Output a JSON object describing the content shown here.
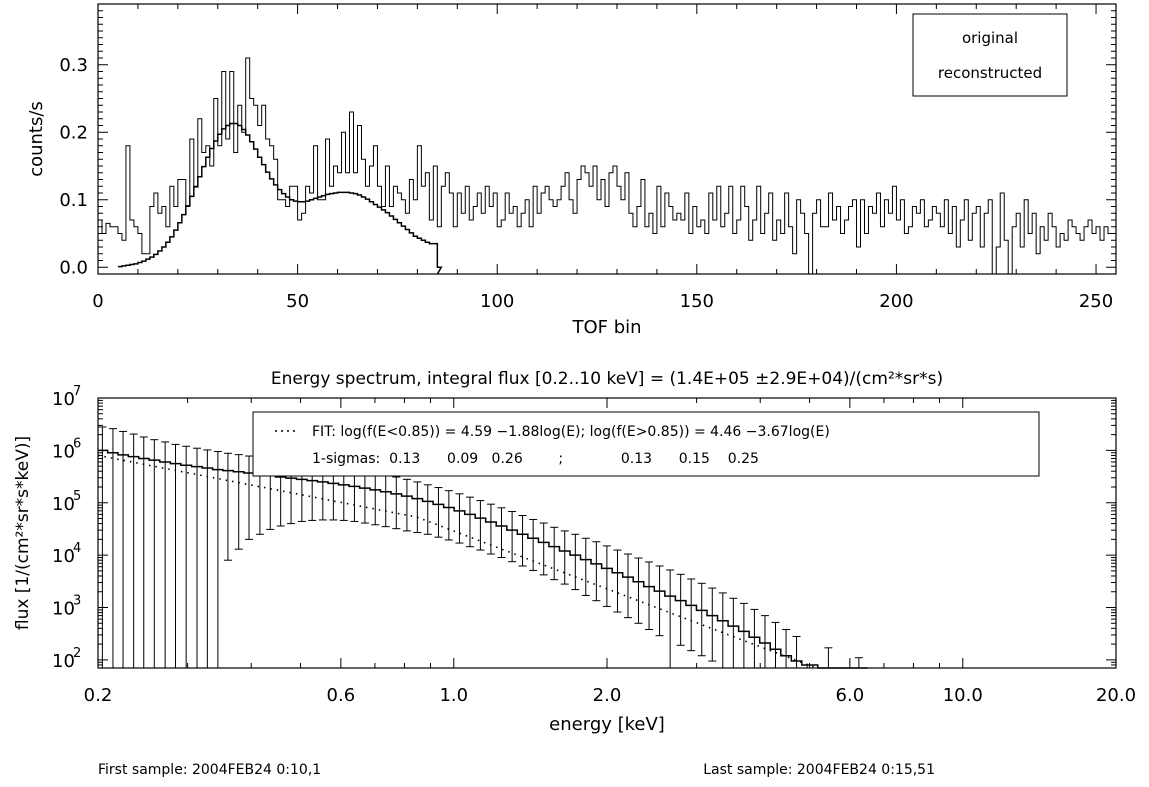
{
  "top_chart": {
    "ylabel": "counts/s",
    "xlabel": "TOF bin",
    "x_ticks": [
      0,
      50,
      100,
      150,
      200,
      250
    ],
    "y_ticks": [
      "0.0",
      "0.1",
      "0.2",
      "0.3"
    ],
    "legend": [
      "original",
      "reconstructed"
    ]
  },
  "bottom_chart": {
    "title": "Energy spectrum,   integral flux [0.2..10 keV] = (1.4E+05 ±2.9E+04)/(cm²*sr*s)",
    "ylabel": "flux [1/(cm²*sr*s*keV)]",
    "xlabel": "energy [keV]",
    "x_ticks": [
      "0.2",
      "0.6",
      "1.0",
      "2.0",
      "6.0",
      "10.0",
      "20.0"
    ],
    "y_ticks": [
      "2",
      "3",
      "4",
      "5",
      "6",
      "7"
    ],
    "legend_fit": "FIT: log(f(E<0.85)) = 4.59 −1.88log(E); log(f(E>0.85)) = 4.46 −3.67log(E)",
    "legend_sigma": "1-sigmas:  0.13      0.09   0.26        ;             0.13      0.15    0.25"
  },
  "footer": {
    "first_sample": "First sample: 2004FEB24 0:10,1",
    "last_sample": "Last sample: 2004FEB24 0:15,51"
  },
  "chart_data": [
    {
      "type": "line",
      "xlabel": "TOF bin",
      "ylabel": "counts/s",
      "xlim": [
        0,
        255
      ],
      "ylim": [
        -0.01,
        0.39
      ],
      "series": [
        {
          "name": "original",
          "x_start": 0,
          "values": [
            0.07,
            0.05,
            0.065,
            0.06,
            0.06,
            0.05,
            0.04,
            0.18,
            0.07,
            0.06,
            0.05,
            0.02,
            0.02,
            0.09,
            0.11,
            0.08,
            0.09,
            0.06,
            0.12,
            0.09,
            0.13,
            0.13,
            0.09,
            0.19,
            0.12,
            0.22,
            0.17,
            0.18,
            0.15,
            0.25,
            0.18,
            0.29,
            0.19,
            0.29,
            0.17,
            0.24,
            0.2,
            0.31,
            0.25,
            0.24,
            0.21,
            0.24,
            0.19,
            0.18,
            0.16,
            0.1,
            0.1,
            0.09,
            0.12,
            0.12,
            0.07,
            0.08,
            0.12,
            0.11,
            0.18,
            0.1,
            0.1,
            0.19,
            0.12,
            0.15,
            0.14,
            0.2,
            0.14,
            0.23,
            0.14,
            0.21,
            0.16,
            0.12,
            0.15,
            0.18,
            0.12,
            0.09,
            0.15,
            0.09,
            0.12,
            0.11,
            0.1,
            0.08,
            0.13,
            0.1,
            0.18,
            0.12,
            0.14,
            0.07,
            0.15,
            0.06,
            0.12,
            0.14,
            0.11,
            0.06,
            0.11,
            0.08,
            0.12,
            0.07,
            0.09,
            0.11,
            0.08,
            0.12,
            0.09,
            0.11,
            0.06,
            0.07,
            0.11,
            0.08,
            0.09,
            0.06,
            0.08,
            0.1,
            0.06,
            0.12,
            0.08,
            0.11,
            0.12,
            0.1,
            0.09,
            0.1,
            0.12,
            0.14,
            0.1,
            0.08,
            0.13,
            0.15,
            0.14,
            0.12,
            0.15,
            0.1,
            0.13,
            0.09,
            0.14,
            0.15,
            0.12,
            0.1,
            0.14,
            0.08,
            0.06,
            0.09,
            0.13,
            0.06,
            0.08,
            0.05,
            0.12,
            0.06,
            0.11,
            0.09,
            0.07,
            0.08,
            0.07,
            0.11,
            0.05,
            0.09,
            0.06,
            0.07,
            0.05,
            0.11,
            0.07,
            0.12,
            0.06,
            0.08,
            0.12,
            0.05,
            0.07,
            0.12,
            0.09,
            0.04,
            0.07,
            0.12,
            0.05,
            0.08,
            0.11,
            0.04,
            0.07,
            0.05,
            0.11,
            0.06,
            0.02,
            0.1,
            0.08,
            0.05,
            -0.01,
            0.08,
            0.1,
            0.06,
            0.06,
            0.11,
            0.07,
            0.09,
            0.05,
            0.07,
            0.09,
            0.1,
            0.03,
            0.1,
            0.05,
            0.09,
            0.08,
            0.11,
            0.06,
            0.1,
            0.08,
            0.12,
            0.07,
            0.1,
            0.05,
            0.06,
            0.09,
            0.08,
            0.1,
            0.06,
            0.07,
            0.09,
            0.08,
            0.06,
            0.1,
            0.05,
            0.09,
            0.03,
            0.07,
            0.1,
            0.04,
            0.08,
            0.09,
            0.03,
            0.08,
            0.1,
            -0.01,
            0.03,
            0.11,
            0.04,
            -0.01,
            0.06,
            0.08,
            0.03,
            0.1,
            0.05,
            0.08,
            0.02,
            0.06,
            0.04,
            0.08,
            0.06,
            0.03,
            0.05,
            0.04,
            0.07,
            0.06,
            0.05,
            0.04,
            0.06,
            0.07,
            0.05,
            0.06,
            0.04,
            0.06,
            0.05
          ]
        },
        {
          "name": "reconstructed",
          "x_start": 5,
          "values": [
            0.001,
            0.002,
            0.003,
            0.004,
            0.005,
            0.007,
            0.009,
            0.012,
            0.015,
            0.019,
            0.024,
            0.03,
            0.037,
            0.045,
            0.055,
            0.066,
            0.078,
            0.091,
            0.105,
            0.119,
            0.134,
            0.149,
            0.163,
            0.176,
            0.187,
            0.197,
            0.205,
            0.21,
            0.213,
            0.213,
            0.21,
            0.204,
            0.196,
            0.186,
            0.175,
            0.163,
            0.152,
            0.141,
            0.131,
            0.122,
            0.115,
            0.109,
            0.104,
            0.1,
            0.098,
            0.097,
            0.097,
            0.098,
            0.1,
            0.102,
            0.104,
            0.106,
            0.108,
            0.109,
            0.11,
            0.111,
            0.111,
            0.111,
            0.11,
            0.109,
            0.107,
            0.104,
            0.101,
            0.097,
            0.093,
            0.089,
            0.085,
            0.081,
            0.076,
            0.071,
            0.066,
            0.061,
            0.056,
            0.051,
            0.046,
            0.043,
            0.04,
            0.037,
            0.035,
            0.035,
            0.0
          ]
        }
      ]
    },
    {
      "type": "line",
      "title": "Energy spectrum,   integral flux [0.2..10 keV] = (1.4E+05 ±2.9E+04)/(cm²*sr*s)",
      "xlabel": "energy [keV]",
      "ylabel": "flux [1/(cm²*sr*s*keV)]",
      "x_scale": "log",
      "y_scale": "log",
      "xlim": [
        0.2,
        20.0
      ],
      "ylim": [
        70,
        10000000
      ],
      "fit": {
        "break_keV": 0.85,
        "low": {
          "a": 4.59,
          "b": -1.88
        },
        "high": {
          "a": 4.46,
          "b": -3.67
        }
      },
      "spectrum": [
        {
          "e": 0.204,
          "f": 1000000,
          "lo": 70,
          "hi": 2800000
        },
        {
          "e": 0.214,
          "f": 900000,
          "lo": 70,
          "hi": 2600000
        },
        {
          "e": 0.224,
          "f": 820000,
          "lo": 70,
          "hi": 2300000
        },
        {
          "e": 0.235,
          "f": 760000,
          "lo": 70,
          "hi": 2050000
        },
        {
          "e": 0.246,
          "f": 700000,
          "lo": 70,
          "hi": 1800000
        },
        {
          "e": 0.258,
          "f": 650000,
          "lo": 70,
          "hi": 1600000
        },
        {
          "e": 0.271,
          "f": 600000,
          "lo": 70,
          "hi": 1450000
        },
        {
          "e": 0.284,
          "f": 560000,
          "lo": 70,
          "hi": 1300000
        },
        {
          "e": 0.298,
          "f": 520000,
          "lo": 70,
          "hi": 1200000
        },
        {
          "e": 0.313,
          "f": 490000,
          "lo": 70,
          "hi": 1100000
        },
        {
          "e": 0.328,
          "f": 460000,
          "lo": 70,
          "hi": 1020000
        },
        {
          "e": 0.344,
          "f": 430000,
          "lo": 70,
          "hi": 950000
        },
        {
          "e": 0.36,
          "f": 410000,
          "lo": 8000,
          "hi": 880000
        },
        {
          "e": 0.378,
          "f": 390000,
          "lo": 13000,
          "hi": 830000
        },
        {
          "e": 0.396,
          "f": 370000,
          "lo": 20000,
          "hi": 780000
        },
        {
          "e": 0.416,
          "f": 350000,
          "lo": 25000,
          "hi": 730000
        },
        {
          "e": 0.436,
          "f": 330000,
          "lo": 31000,
          "hi": 690000
        },
        {
          "e": 0.457,
          "f": 310000,
          "lo": 36000,
          "hi": 650000
        },
        {
          "e": 0.479,
          "f": 295000,
          "lo": 40000,
          "hi": 610000
        },
        {
          "e": 0.503,
          "f": 280000,
          "lo": 44000,
          "hi": 580000
        },
        {
          "e": 0.527,
          "f": 265000,
          "lo": 46000,
          "hi": 550000
        },
        {
          "e": 0.553,
          "f": 250000,
          "lo": 47000,
          "hi": 520000
        },
        {
          "e": 0.58,
          "f": 235000,
          "lo": 47000,
          "hi": 490000
        },
        {
          "e": 0.608,
          "f": 220000,
          "lo": 46000,
          "hi": 460000
        },
        {
          "e": 0.638,
          "f": 205000,
          "lo": 44000,
          "hi": 430000
        },
        {
          "e": 0.669,
          "f": 190000,
          "lo": 41000,
          "hi": 400000
        },
        {
          "e": 0.701,
          "f": 176000,
          "lo": 38000,
          "hi": 370000
        },
        {
          "e": 0.735,
          "f": 162000,
          "lo": 35000,
          "hi": 340000
        },
        {
          "e": 0.771,
          "f": 148000,
          "lo": 32000,
          "hi": 310000
        },
        {
          "e": 0.809,
          "f": 134000,
          "lo": 29000,
          "hi": 280000
        },
        {
          "e": 0.848,
          "f": 120000,
          "lo": 27000,
          "hi": 250000
        },
        {
          "e": 0.889,
          "f": 106000,
          "lo": 25000,
          "hi": 220000
        },
        {
          "e": 0.933,
          "f": 93000,
          "lo": 22000,
          "hi": 195000
        },
        {
          "e": 0.978,
          "f": 81000,
          "lo": 19500,
          "hi": 170000
        },
        {
          "e": 1.026,
          "f": 70000,
          "lo": 17000,
          "hi": 148000
        },
        {
          "e": 1.076,
          "f": 60000,
          "lo": 14500,
          "hi": 128000
        },
        {
          "e": 1.128,
          "f": 51000,
          "lo": 12500,
          "hi": 110000
        },
        {
          "e": 1.183,
          "f": 43000,
          "lo": 10500,
          "hi": 94000
        },
        {
          "e": 1.241,
          "f": 36000,
          "lo": 9000,
          "hi": 80000
        },
        {
          "e": 1.302,
          "f": 30000,
          "lo": 7500,
          "hi": 68000
        },
        {
          "e": 1.365,
          "f": 25000,
          "lo": 6200,
          "hi": 57000
        },
        {
          "e": 1.432,
          "f": 21000,
          "lo": 5100,
          "hi": 48000
        },
        {
          "e": 1.502,
          "f": 17500,
          "lo": 4200,
          "hi": 41000
        },
        {
          "e": 1.575,
          "f": 14500,
          "lo": 3400,
          "hi": 34000
        },
        {
          "e": 1.652,
          "f": 12000,
          "lo": 2800,
          "hi": 29000
        },
        {
          "e": 1.733,
          "f": 10000,
          "lo": 2200,
          "hi": 25000
        },
        {
          "e": 1.817,
          "f": 8200,
          "lo": 1700,
          "hi": 21000
        },
        {
          "e": 1.906,
          "f": 6800,
          "lo": 1350,
          "hi": 18000
        },
        {
          "e": 1.999,
          "f": 5600,
          "lo": 1050,
          "hi": 15000
        },
        {
          "e": 2.097,
          "f": 4600,
          "lo": 820,
          "hi": 12500
        },
        {
          "e": 2.199,
          "f": 3800,
          "lo": 640,
          "hi": 10500
        },
        {
          "e": 2.306,
          "f": 3100,
          "lo": 500,
          "hi": 8800
        },
        {
          "e": 2.419,
          "f": 2500,
          "lo": 380,
          "hi": 7400
        },
        {
          "e": 2.537,
          "f": 2050,
          "lo": 290,
          "hi": 6200
        },
        {
          "e": 2.661,
          "f": 1650,
          "lo": 70,
          "hi": 5200
        },
        {
          "e": 2.791,
          "f": 1350,
          "lo": 190,
          "hi": 4300
        },
        {
          "e": 2.927,
          "f": 1100,
          "lo": 150,
          "hi": 3500
        },
        {
          "e": 3.07,
          "f": 880,
          "lo": 120,
          "hi": 2900
        },
        {
          "e": 3.22,
          "f": 700,
          "lo": 95,
          "hi": 2350
        },
        {
          "e": 3.377,
          "f": 560,
          "lo": 70,
          "hi": 1900
        },
        {
          "e": 3.542,
          "f": 440,
          "lo": 70,
          "hi": 1500
        },
        {
          "e": 3.715,
          "f": 350,
          "lo": 70,
          "hi": 1200
        },
        {
          "e": 3.896,
          "f": 270,
          "lo": 70,
          "hi": 920
        },
        {
          "e": 4.087,
          "f": 210,
          "lo": 70,
          "hi": 700
        },
        {
          "e": 4.286,
          "f": 160,
          "lo": 70,
          "hi": 520
        },
        {
          "e": 4.496,
          "f": 120,
          "lo": 70,
          "hi": 380
        },
        {
          "e": 4.715,
          "f": 95,
          "lo": 70,
          "hi": 280
        },
        {
          "e": 4.945,
          "f": 80,
          "lo": 70,
          "hi": 80
        },
        {
          "e": 5.445,
          "f": 70,
          "lo": 70,
          "hi": 170
        },
        {
          "e": 6.25,
          "f": 70,
          "lo": 70,
          "hi": 110
        }
      ]
    }
  ]
}
